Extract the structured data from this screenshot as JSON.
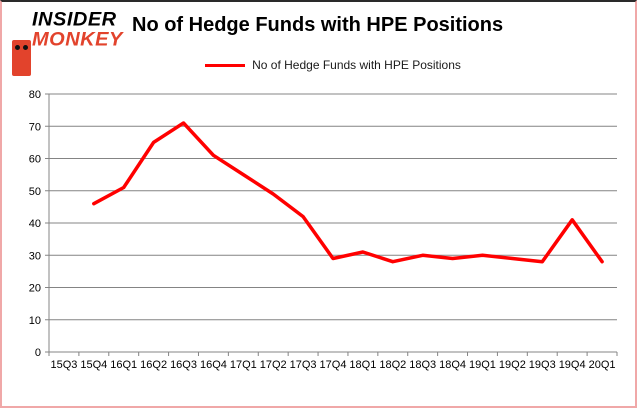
{
  "logo": {
    "line1": "INSIDER",
    "line2": "MONKEY",
    "text_color": "#000000",
    "accent_color": "#e2432c"
  },
  "header": {
    "title": "No of Hedge Funds with HPE Positions"
  },
  "legend": {
    "label": "No of Hedge Funds with HPE Positions",
    "swatch_color": "#ff0000"
  },
  "chart_data": {
    "type": "line",
    "title": "No of Hedge Funds with HPE Positions",
    "categories": [
      "15Q3",
      "15Q4",
      "16Q1",
      "16Q2",
      "16Q3",
      "16Q4",
      "17Q1",
      "17Q2",
      "17Q3",
      "17Q4",
      "18Q1",
      "18Q2",
      "18Q3",
      "18Q4",
      "19Q1",
      "19Q2",
      "19Q3",
      "19Q4",
      "20Q1"
    ],
    "series": [
      {
        "name": "No of Hedge Funds with HPE Positions",
        "color": "#ff0000",
        "values": [
          null,
          46,
          51,
          65,
          71,
          61,
          55,
          49,
          42,
          29,
          31,
          28,
          30,
          29,
          30,
          29,
          28,
          41,
          28
        ]
      }
    ],
    "ylim": [
      0,
      80
    ],
    "ytick_step": 10,
    "xlabel": "",
    "ylabel": "",
    "grid": true,
    "legend_position": "top-center",
    "axis_color": "#848484",
    "label_color": "#000000",
    "line_width": 3.5
  }
}
